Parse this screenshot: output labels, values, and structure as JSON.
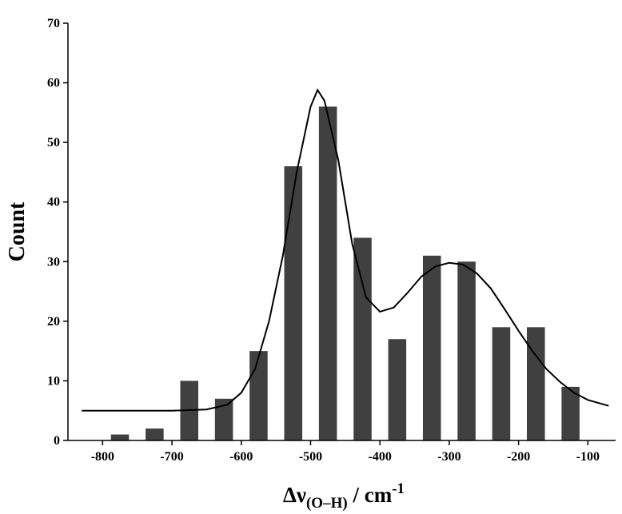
{
  "chart_data": {
    "type": "histogram",
    "bins": [
      -800,
      -750,
      -700,
      -650,
      -600,
      -550,
      -500,
      -450,
      -400,
      -350,
      -300,
      -250,
      -200,
      -150,
      -100
    ],
    "values": [
      1,
      2,
      10,
      7,
      15,
      46,
      56,
      34,
      17,
      31,
      30,
      19,
      19,
      9
    ],
    "color": "#404040",
    "fit": {
      "color": "#000000",
      "x": [
        -830,
        -750,
        -700,
        -650,
        -620,
        -600,
        -580,
        -560,
        -540,
        -520,
        -500,
        -490,
        -480,
        -460,
        -440,
        -420,
        -400,
        -380,
        -360,
        -340,
        -320,
        -300,
        -280,
        -260,
        -240,
        -220,
        -200,
        -180,
        -160,
        -140,
        -120,
        -100,
        -70
      ],
      "y": [
        5,
        5,
        5,
        5.2,
        6,
        8,
        12,
        20,
        31,
        45,
        56,
        58.8,
        57,
        47,
        33,
        24,
        21.6,
        22.3,
        24.8,
        27.5,
        29.2,
        29.8,
        29.5,
        28,
        25.5,
        22,
        18.4,
        15,
        12,
        9.8,
        8,
        6.8,
        5.8
      ]
    },
    "xlabel": {
      "symbol": "Δν",
      "subscript": "(O–H)",
      "unit": " / cm",
      "superscript": "-1"
    },
    "ylabel": "Count",
    "xlim": [
      -850,
      -60
    ],
    "ylim": [
      0,
      70
    ],
    "xticks": [
      -800,
      -700,
      -600,
      -500,
      -400,
      -300,
      -200,
      -100
    ],
    "yticks": [
      0,
      10,
      20,
      30,
      40,
      50,
      60,
      70
    ]
  }
}
